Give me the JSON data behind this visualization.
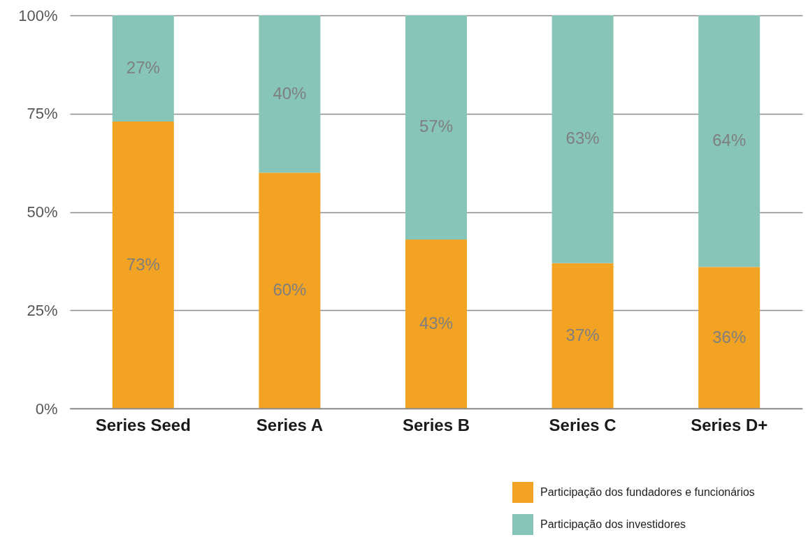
{
  "chart_data": {
    "type": "bar",
    "stacked": true,
    "categories": [
      "Series Seed",
      "Series A",
      "Series B",
      "Series C",
      "Series D+"
    ],
    "series": [
      {
        "name": "Participação dos fundadores e funcionários",
        "color": "#f2a324",
        "values": [
          73,
          60,
          43,
          37,
          36
        ],
        "value_labels": [
          "73%",
          "60%",
          "43%",
          "37%",
          "36%"
        ]
      },
      {
        "name": "Participação dos investidores",
        "color": "#86c5b8",
        "values": [
          27,
          40,
          57,
          63,
          64
        ],
        "value_labels": [
          "27%",
          "40%",
          "57%",
          "63%",
          "64%"
        ]
      }
    ],
    "ylim": [
      0,
      100
    ],
    "yticks": [
      {
        "value": 0,
        "label": "0%"
      },
      {
        "value": 25,
        "label": "25%"
      },
      {
        "value": 50,
        "label": "50%"
      },
      {
        "value": 75,
        "label": "75%"
      },
      {
        "value": 100,
        "label": "100%"
      }
    ],
    "grid": "y",
    "legend": "bottom right"
  }
}
